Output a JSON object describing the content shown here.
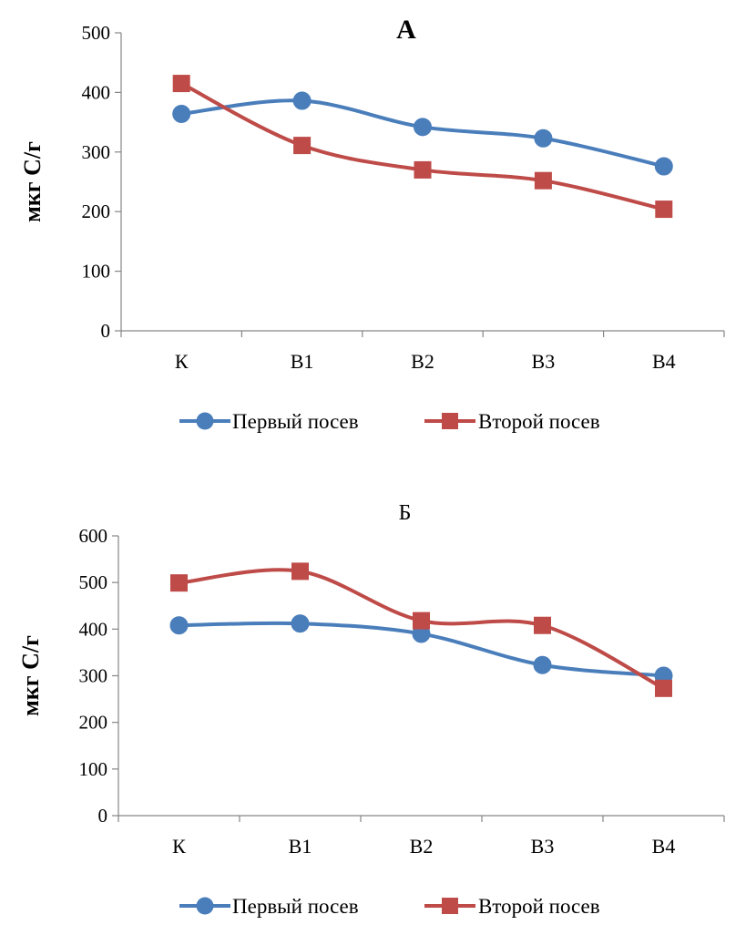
{
  "chart_data": [
    {
      "type": "line",
      "title": "А",
      "ylabel": "мкг С/г",
      "xlabel": "",
      "categories": [
        "К",
        "В1",
        "В2",
        "В3",
        "В4"
      ],
      "ylim": [
        0,
        500
      ],
      "yticks": [
        0,
        100,
        200,
        300,
        400,
        500
      ],
      "grid": false,
      "legend_position": "bottom",
      "series": [
        {
          "name": "Первый посев",
          "values": [
            364,
            386,
            342,
            323,
            276
          ],
          "color": "#4a7ebb",
          "marker": "circle"
        },
        {
          "name": "Второй посев",
          "values": [
            415,
            311,
            270,
            252,
            204
          ],
          "color": "#be4b48",
          "marker": "square"
        }
      ]
    },
    {
      "type": "line",
      "title": "Б",
      "ylabel": "мкг С/г",
      "xlabel": "",
      "categories": [
        "К",
        "В1",
        "В2",
        "В3",
        "В4"
      ],
      "ylim": [
        0,
        600
      ],
      "yticks": [
        0,
        100,
        200,
        300,
        400,
        500,
        600
      ],
      "grid": false,
      "legend_position": "bottom",
      "series": [
        {
          "name": "Первый посев",
          "values": [
            408,
            412,
            390,
            323,
            300
          ],
          "color": "#4a7ebb",
          "marker": "circle"
        },
        {
          "name": "Второй посев",
          "values": [
            499,
            524,
            418,
            408,
            273
          ],
          "color": "#be4b48",
          "marker": "square"
        }
      ]
    }
  ]
}
